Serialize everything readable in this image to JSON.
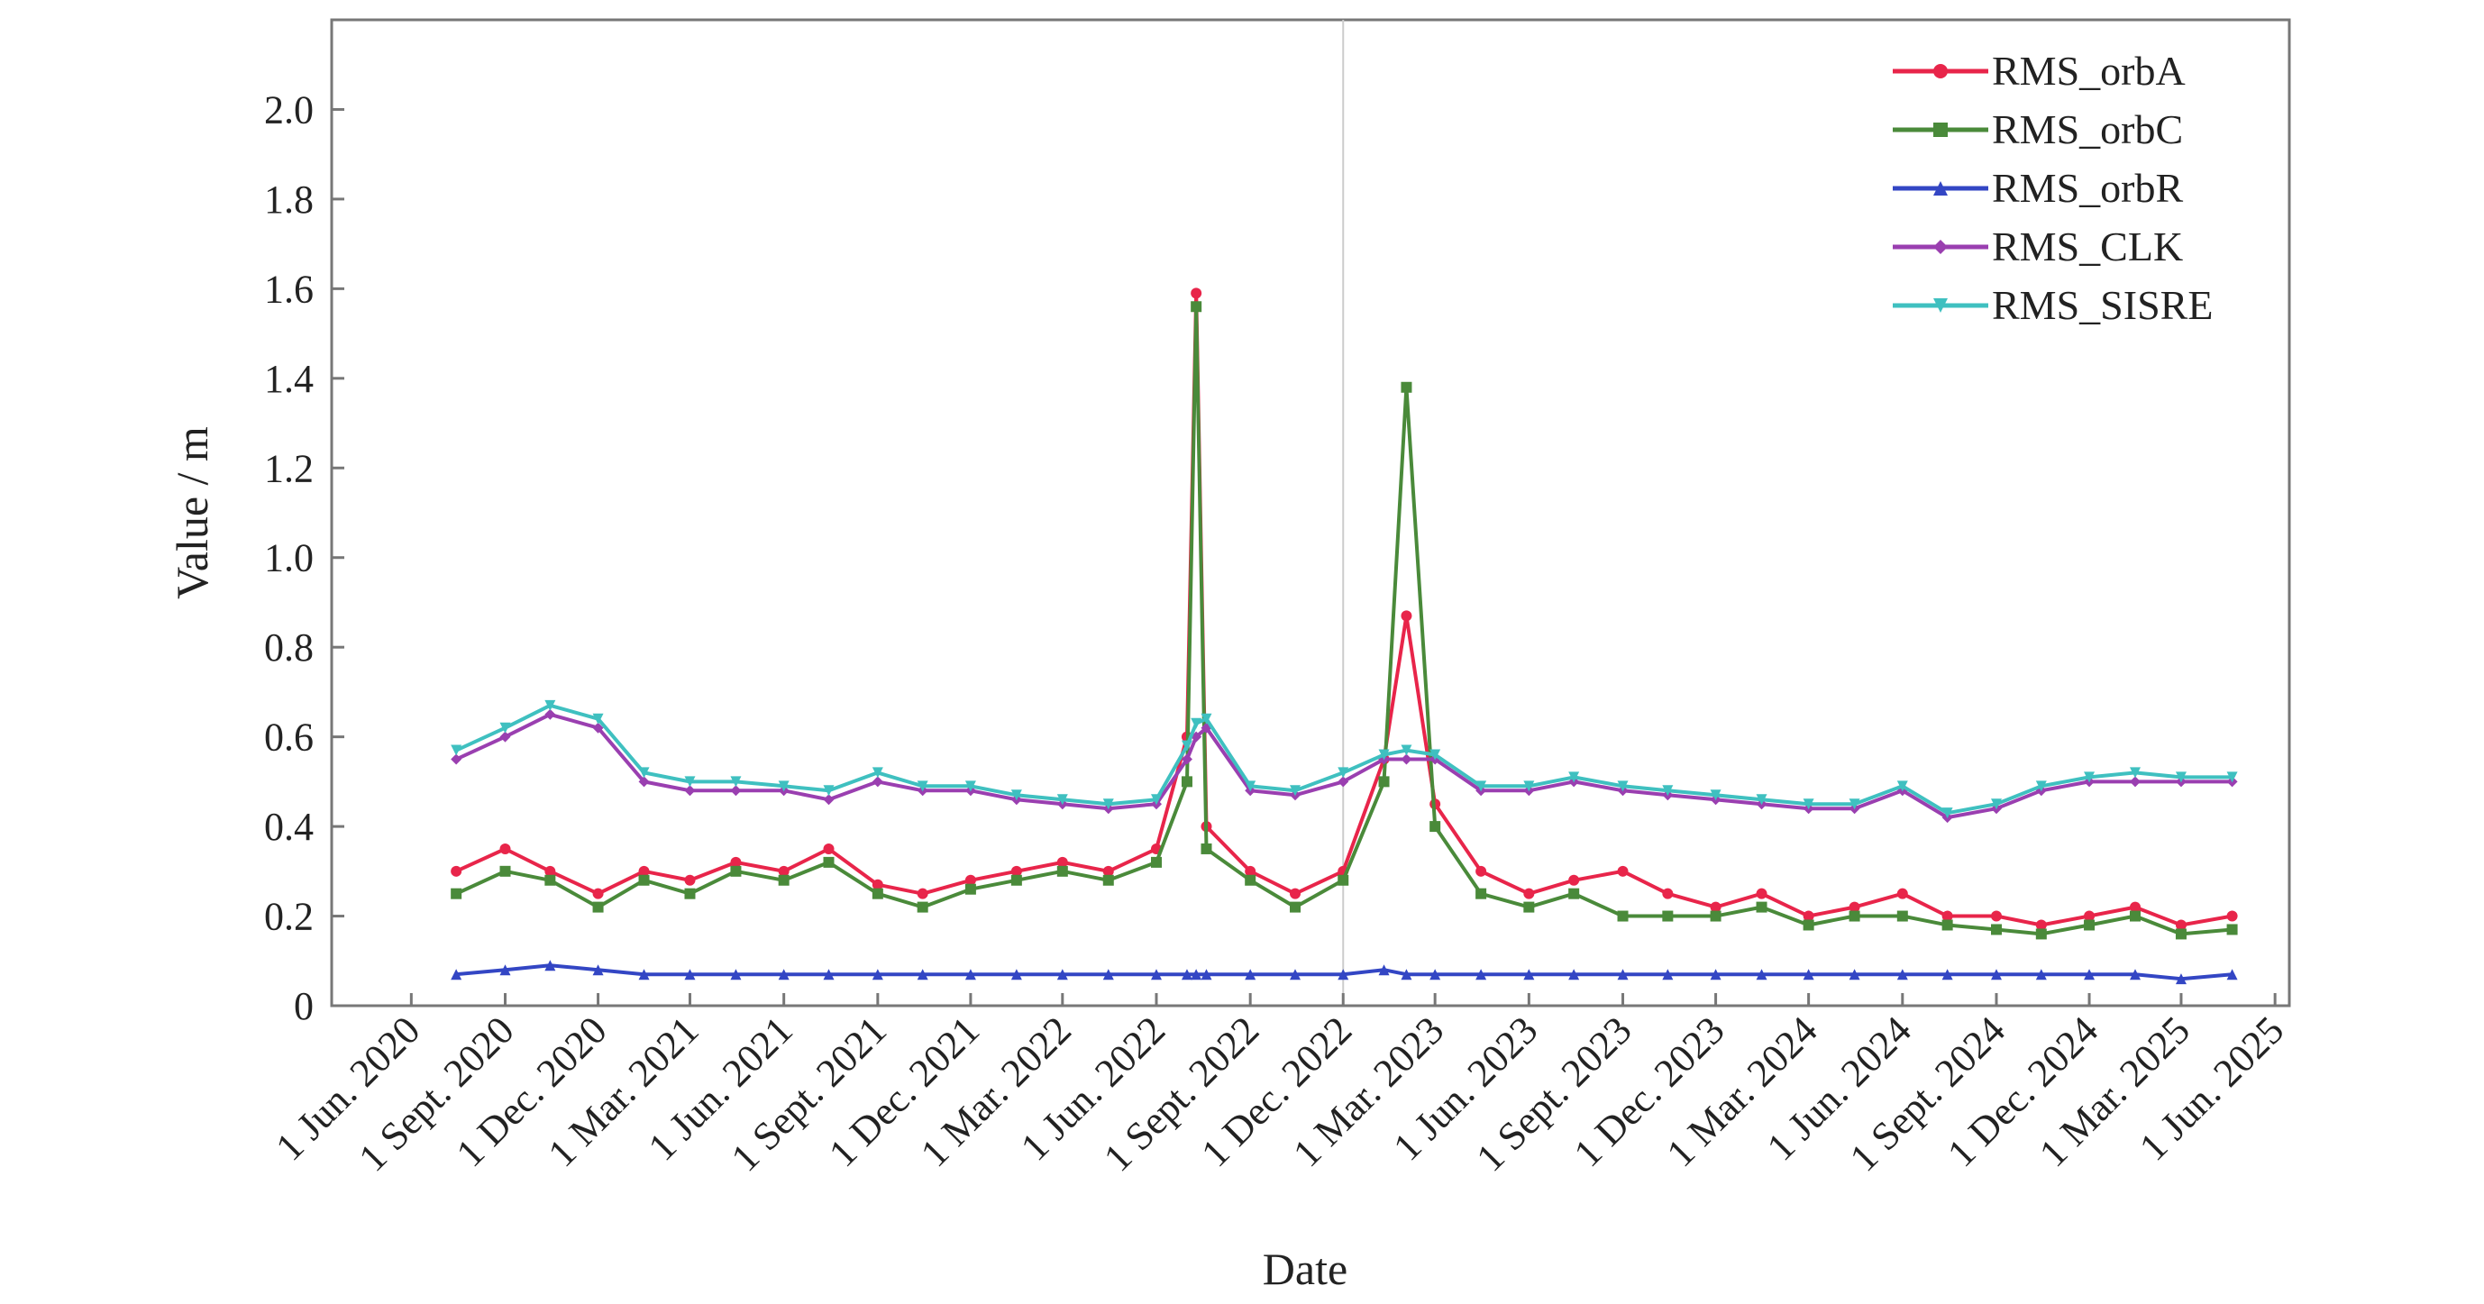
{
  "chart_data": {
    "type": "line",
    "title": "",
    "xlabel": "Date",
    "ylabel": "Value / m",
    "ylim": [
      0,
      2.2
    ],
    "yticks": [
      0,
      0.2,
      0.4,
      0.6,
      0.8,
      1.0,
      1.2,
      1.4,
      1.6,
      1.8,
      2.0
    ],
    "ytick_labels": [
      "0",
      "0.2",
      "0.4",
      "0.6",
      "0.8",
      "1.0",
      "1.2",
      "1.4",
      "1.6",
      "1.8",
      "2.0"
    ],
    "xlim": [
      "2020-03-15",
      "2025-06-15"
    ],
    "xticks": [
      "2020-06-01",
      "2020-09-01",
      "2020-12-01",
      "2021-03-01",
      "2021-06-01",
      "2021-09-01",
      "2021-12-01",
      "2022-03-01",
      "2022-06-01",
      "2022-09-01",
      "2022-12-01",
      "2023-03-01",
      "2023-06-01",
      "2023-09-01",
      "2023-12-01",
      "2024-03-01",
      "2024-06-01",
      "2024-09-01",
      "2024-12-01",
      "2025-03-01",
      "2025-06-01"
    ],
    "xtick_labels": [
      "1 Jun. 2020",
      "1 Sept. 2020",
      "1 Dec. 2020",
      "1 Mar. 2021",
      "1 Jun. 2021",
      "1 Sept. 2021",
      "1 Dec. 2021",
      "1 Mar. 2022",
      "1 Jun. 2022",
      "1 Sept. 2022",
      "1 Dec. 2022",
      "1 Mar. 2023",
      "1 Jun. 2023",
      "1 Sept. 2023",
      "1 Dec. 2023",
      "1 Mar. 2024",
      "1 Jun. 2024",
      "1 Sept. 2024",
      "1 Dec. 2024",
      "1 Mar. 2025",
      "1 Jun. 2025"
    ],
    "vline": "2022-12-01",
    "legend_position": "top-right",
    "series": [
      {
        "name": "RMS_orbA",
        "color": "#e8254a",
        "marker": "circle",
        "x": [
          "2020-07-15",
          "2020-09-01",
          "2020-10-15",
          "2020-12-01",
          "2021-01-15",
          "2021-03-01",
          "2021-04-15",
          "2021-06-01",
          "2021-07-15",
          "2021-09-01",
          "2021-10-15",
          "2021-12-01",
          "2022-01-15",
          "2022-03-01",
          "2022-04-15",
          "2022-06-01",
          "2022-07-01",
          "2022-07-10",
          "2022-07-20",
          "2022-09-01",
          "2022-10-15",
          "2022-12-01",
          "2023-01-10",
          "2023-02-01",
          "2023-03-01",
          "2023-04-15",
          "2023-06-01",
          "2023-07-15",
          "2023-09-01",
          "2023-10-15",
          "2023-12-01",
          "2024-01-15",
          "2024-03-01",
          "2024-04-15",
          "2024-06-01",
          "2024-07-15",
          "2024-09-01",
          "2024-10-15",
          "2024-12-01",
          "2025-01-15",
          "2025-03-01",
          "2025-04-20"
        ],
        "values": [
          0.3,
          0.35,
          0.3,
          0.25,
          0.3,
          0.28,
          0.32,
          0.3,
          0.35,
          0.27,
          0.25,
          0.28,
          0.3,
          0.32,
          0.3,
          0.35,
          0.6,
          1.59,
          0.4,
          0.3,
          0.25,
          0.3,
          0.55,
          0.87,
          0.45,
          0.3,
          0.25,
          0.28,
          0.3,
          0.25,
          0.22,
          0.25,
          0.2,
          0.22,
          0.25,
          0.2,
          0.2,
          0.18,
          0.2,
          0.22,
          0.18,
          0.2
        ]
      },
      {
        "name": "RMS_orbC",
        "color": "#4a8a3a",
        "marker": "square",
        "x": [
          "2020-07-15",
          "2020-09-01",
          "2020-10-15",
          "2020-12-01",
          "2021-01-15",
          "2021-03-01",
          "2021-04-15",
          "2021-06-01",
          "2021-07-15",
          "2021-09-01",
          "2021-10-15",
          "2021-12-01",
          "2022-01-15",
          "2022-03-01",
          "2022-04-15",
          "2022-06-01",
          "2022-07-01",
          "2022-07-10",
          "2022-07-20",
          "2022-09-01",
          "2022-10-15",
          "2022-12-01",
          "2023-01-10",
          "2023-02-01",
          "2023-03-01",
          "2023-04-15",
          "2023-06-01",
          "2023-07-15",
          "2023-09-01",
          "2023-10-15",
          "2023-12-01",
          "2024-01-15",
          "2024-03-01",
          "2024-04-15",
          "2024-06-01",
          "2024-07-15",
          "2024-09-01",
          "2024-10-15",
          "2024-12-01",
          "2025-01-15",
          "2025-03-01",
          "2025-04-20"
        ],
        "values": [
          0.25,
          0.3,
          0.28,
          0.22,
          0.28,
          0.25,
          0.3,
          0.28,
          0.32,
          0.25,
          0.22,
          0.26,
          0.28,
          0.3,
          0.28,
          0.32,
          0.5,
          1.56,
          0.35,
          0.28,
          0.22,
          0.28,
          0.5,
          1.38,
          0.4,
          0.25,
          0.22,
          0.25,
          0.2,
          0.2,
          0.2,
          0.22,
          0.18,
          0.2,
          0.2,
          0.18,
          0.17,
          0.16,
          0.18,
          0.2,
          0.16,
          0.17
        ]
      },
      {
        "name": "RMS_orbR",
        "color": "#3346c4",
        "marker": "triangle-up",
        "x": [
          "2020-07-15",
          "2020-09-01",
          "2020-10-15",
          "2020-12-01",
          "2021-01-15",
          "2021-03-01",
          "2021-04-15",
          "2021-06-01",
          "2021-07-15",
          "2021-09-01",
          "2021-10-15",
          "2021-12-01",
          "2022-01-15",
          "2022-03-01",
          "2022-04-15",
          "2022-06-01",
          "2022-07-01",
          "2022-07-10",
          "2022-07-20",
          "2022-09-01",
          "2022-10-15",
          "2022-12-01",
          "2023-01-10",
          "2023-02-01",
          "2023-03-01",
          "2023-04-15",
          "2023-06-01",
          "2023-07-15",
          "2023-09-01",
          "2023-10-15",
          "2023-12-01",
          "2024-01-15",
          "2024-03-01",
          "2024-04-15",
          "2024-06-01",
          "2024-07-15",
          "2024-09-01",
          "2024-10-15",
          "2024-12-01",
          "2025-01-15",
          "2025-03-01",
          "2025-04-20"
        ],
        "values": [
          0.07,
          0.08,
          0.09,
          0.08,
          0.07,
          0.07,
          0.07,
          0.07,
          0.07,
          0.07,
          0.07,
          0.07,
          0.07,
          0.07,
          0.07,
          0.07,
          0.07,
          0.07,
          0.07,
          0.07,
          0.07,
          0.07,
          0.08,
          0.07,
          0.07,
          0.07,
          0.07,
          0.07,
          0.07,
          0.07,
          0.07,
          0.07,
          0.07,
          0.07,
          0.07,
          0.07,
          0.07,
          0.07,
          0.07,
          0.07,
          0.06,
          0.07
        ]
      },
      {
        "name": "RMS_CLK",
        "color": "#9a3fb0",
        "marker": "diamond",
        "x": [
          "2020-07-15",
          "2020-09-01",
          "2020-10-15",
          "2020-12-01",
          "2021-01-15",
          "2021-03-01",
          "2021-04-15",
          "2021-06-01",
          "2021-07-15",
          "2021-09-01",
          "2021-10-15",
          "2021-12-01",
          "2022-01-15",
          "2022-03-01",
          "2022-04-15",
          "2022-06-01",
          "2022-07-01",
          "2022-07-10",
          "2022-07-20",
          "2022-09-01",
          "2022-10-15",
          "2022-12-01",
          "2023-01-10",
          "2023-02-01",
          "2023-03-01",
          "2023-04-15",
          "2023-06-01",
          "2023-07-15",
          "2023-09-01",
          "2023-10-15",
          "2023-12-01",
          "2024-01-15",
          "2024-03-01",
          "2024-04-15",
          "2024-06-01",
          "2024-07-15",
          "2024-09-01",
          "2024-10-15",
          "2024-12-01",
          "2025-01-15",
          "2025-03-01",
          "2025-04-20"
        ],
        "values": [
          0.55,
          0.6,
          0.65,
          0.62,
          0.5,
          0.48,
          0.48,
          0.48,
          0.46,
          0.5,
          0.48,
          0.48,
          0.46,
          0.45,
          0.44,
          0.45,
          0.55,
          0.6,
          0.62,
          0.48,
          0.47,
          0.5,
          0.55,
          0.55,
          0.55,
          0.48,
          0.48,
          0.5,
          0.48,
          0.47,
          0.46,
          0.45,
          0.44,
          0.44,
          0.48,
          0.42,
          0.44,
          0.48,
          0.5,
          0.5,
          0.5,
          0.5
        ]
      },
      {
        "name": "RMS_SISRE",
        "color": "#3fc0c0",
        "marker": "triangle-down",
        "x": [
          "2020-07-15",
          "2020-09-01",
          "2020-10-15",
          "2020-12-01",
          "2021-01-15",
          "2021-03-01",
          "2021-04-15",
          "2021-06-01",
          "2021-07-15",
          "2021-09-01",
          "2021-10-15",
          "2021-12-01",
          "2022-01-15",
          "2022-03-01",
          "2022-04-15",
          "2022-06-01",
          "2022-07-01",
          "2022-07-10",
          "2022-07-20",
          "2022-09-01",
          "2022-10-15",
          "2022-12-01",
          "2023-01-10",
          "2023-02-01",
          "2023-03-01",
          "2023-04-15",
          "2023-06-01",
          "2023-07-15",
          "2023-09-01",
          "2023-10-15",
          "2023-12-01",
          "2024-01-15",
          "2024-03-01",
          "2024-04-15",
          "2024-06-01",
          "2024-07-15",
          "2024-09-01",
          "2024-10-15",
          "2024-12-01",
          "2025-01-15",
          "2025-03-01",
          "2025-04-20"
        ],
        "values": [
          0.57,
          0.62,
          0.67,
          0.64,
          0.52,
          0.5,
          0.5,
          0.49,
          0.48,
          0.52,
          0.49,
          0.49,
          0.47,
          0.46,
          0.45,
          0.46,
          0.58,
          0.63,
          0.64,
          0.49,
          0.48,
          0.52,
          0.56,
          0.57,
          0.56,
          0.49,
          0.49,
          0.51,
          0.49,
          0.48,
          0.47,
          0.46,
          0.45,
          0.45,
          0.49,
          0.43,
          0.45,
          0.49,
          0.51,
          0.52,
          0.51,
          0.51
        ]
      }
    ]
  }
}
